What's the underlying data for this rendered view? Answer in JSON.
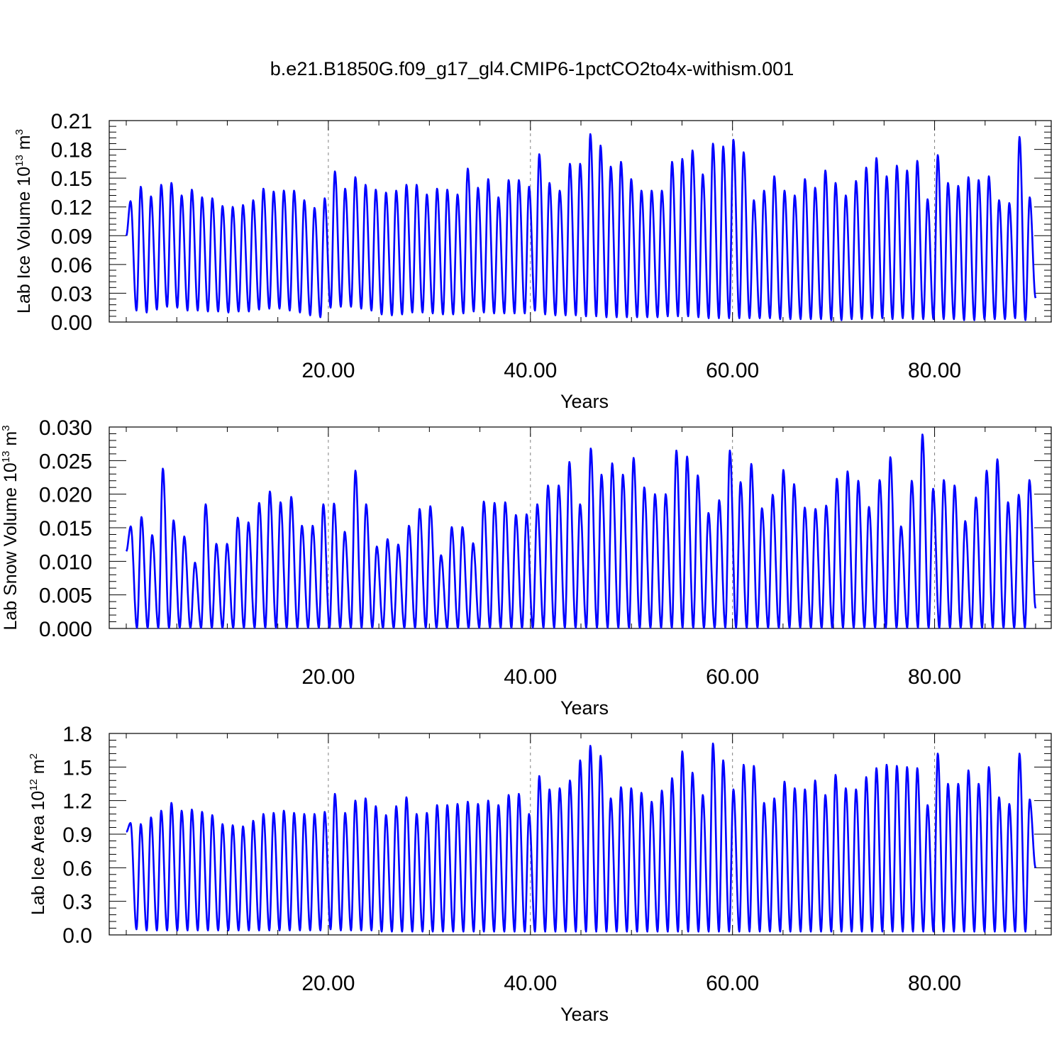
{
  "title": "b.e21.B1850G.f09_g17_gl4.CMIP6-1pctCO2to4x-withism.001",
  "colors": {
    "line": "#0000ff",
    "axis": "#000000",
    "grid": "#808080",
    "background": "#ffffff"
  },
  "chart_data": [
    {
      "type": "line",
      "title": "",
      "xlabel": "Years",
      "ylabel": {
        "prefix": "Lab Ice Volume 10",
        "exponent": "13",
        "unit": " m",
        "unit_exponent": "3"
      },
      "xlim": [
        0,
        90
      ],
      "ylim": [
        0,
        0.21
      ],
      "xticks": [
        20,
        40,
        60,
        80
      ],
      "xtick_labels": [
        "20.00",
        "40.00",
        "60.00",
        "80.00"
      ],
      "yticks": [
        0,
        0.03,
        0.06,
        0.09,
        0.12,
        0.15,
        0.18,
        0.21
      ],
      "ytick_labels": [
        "0.00",
        "0.03",
        "0.06",
        "0.09",
        "0.12",
        "0.15",
        "0.18",
        "0.21"
      ],
      "grid": "vertical dashed at x ticks",
      "series": [
        {
          "seasonal": true,
          "start_value": 0.09,
          "end_value": 0.025,
          "peaks": [
            0.126,
            0.141,
            0.131,
            0.143,
            0.145,
            0.132,
            0.138,
            0.13,
            0.129,
            0.121,
            0.12,
            0.122,
            0.127,
            0.139,
            0.136,
            0.137,
            0.137,
            0.127,
            0.119,
            0.129,
            0.157,
            0.139,
            0.151,
            0.143,
            0.138,
            0.135,
            0.137,
            0.143,
            0.143,
            0.133,
            0.139,
            0.138,
            0.133,
            0.16,
            0.14,
            0.149,
            0.13,
            0.148,
            0.148,
            0.141,
            0.175,
            0.145,
            0.137,
            0.165,
            0.165,
            0.196,
            0.184,
            0.162,
            0.167,
            0.149,
            0.137,
            0.137,
            0.137,
            0.167,
            0.17,
            0.179,
            0.154,
            0.186,
            0.183,
            0.19,
            0.177,
            0.127,
            0.137,
            0.152,
            0.137,
            0.132,
            0.149,
            0.14,
            0.158,
            0.145,
            0.132,
            0.147,
            0.161,
            0.171,
            0.152,
            0.163,
            0.158,
            0.168,
            0.128,
            0.174,
            0.145,
            0.142,
            0.151,
            0.148,
            0.152,
            0.127,
            0.124,
            0.193,
            0.13
          ],
          "troughs": [
            0.012,
            0.01,
            0.013,
            0.016,
            0.015,
            0.012,
            0.012,
            0.011,
            0.011,
            0.01,
            0.011,
            0.011,
            0.013,
            0.014,
            0.014,
            0.012,
            0.01,
            0.007,
            0.005,
            0.015,
            0.016,
            0.016,
            0.014,
            0.012,
            0.008,
            0.007,
            0.008,
            0.01,
            0.01,
            0.009,
            0.008,
            0.008,
            0.009,
            0.011,
            0.01,
            0.009,
            0.009,
            0.009,
            0.009,
            0.012,
            0.008,
            0.007,
            0.007,
            0.007,
            0.006,
            0.006,
            0.005,
            0.005,
            0.005,
            0.005,
            0.005,
            0.005,
            0.006,
            0.006,
            0.006,
            0.005,
            0.004,
            0.004,
            0.004,
            0.004,
            0.004,
            0.004,
            0.004,
            0.003,
            0.003,
            0.003,
            0.003,
            0.003,
            0.002,
            0.002,
            0.003,
            0.003,
            0.004,
            0.004,
            0.003,
            0.004,
            0.003,
            0.003,
            0.003,
            0.003,
            0.003,
            0.002,
            0.002,
            0.003,
            0.003,
            0.003,
            0.004,
            0.002
          ]
        }
      ]
    },
    {
      "type": "line",
      "title": "",
      "xlabel": "Years",
      "ylabel": {
        "prefix": "Lab Snow Volume 10",
        "exponent": "13",
        "unit": " m",
        "unit_exponent": "3"
      },
      "xlim": [
        0,
        90
      ],
      "ylim": [
        0,
        0.03
      ],
      "xticks": [
        20,
        40,
        60,
        80
      ],
      "xtick_labels": [
        "20.00",
        "40.00",
        "60.00",
        "80.00"
      ],
      "yticks": [
        0,
        0.005,
        0.01,
        0.015,
        0.02,
        0.025,
        0.03
      ],
      "ytick_labels": [
        "0.000",
        "0.005",
        "0.010",
        "0.015",
        "0.020",
        "0.025",
        "0.030"
      ],
      "grid": "vertical dashed at x ticks",
      "series": [
        {
          "seasonal": true,
          "start_value": 0.0115,
          "end_value": 0.003,
          "peaks": [
            0.0152,
            0.0166,
            0.0139,
            0.0238,
            0.0161,
            0.0137,
            0.0098,
            0.0185,
            0.0126,
            0.0126,
            0.0165,
            0.0158,
            0.0187,
            0.0204,
            0.0188,
            0.0196,
            0.0153,
            0.0153,
            0.0185,
            0.0186,
            0.0144,
            0.0235,
            0.0185,
            0.0122,
            0.0133,
            0.0125,
            0.0153,
            0.0178,
            0.0182,
            0.0109,
            0.0151,
            0.0151,
            0.0127,
            0.0189,
            0.0187,
            0.0188,
            0.0169,
            0.017,
            0.0185,
            0.0213,
            0.0213,
            0.0248,
            0.0185,
            0.0268,
            0.0229,
            0.0246,
            0.0229,
            0.0254,
            0.021,
            0.02,
            0.02,
            0.0265,
            0.0256,
            0.0228,
            0.0172,
            0.0191,
            0.0265,
            0.0218,
            0.0245,
            0.0179,
            0.0199,
            0.0236,
            0.0215,
            0.018,
            0.0178,
            0.0183,
            0.0223,
            0.0234,
            0.022,
            0.0181,
            0.0221,
            0.0255,
            0.0152,
            0.022,
            0.0289,
            0.0208,
            0.0221,
            0.0213,
            0.016,
            0.0195,
            0.0235,
            0.0252,
            0.0188,
            0.0199,
            0.0221
          ],
          "troughs": [
            0.0001,
            0.0001,
            0.0001,
            0.0001,
            0.0001,
            0.0001,
            0.0001,
            0.0001,
            0.0001,
            0.0001,
            0.0001,
            0.0001,
            0.0001,
            0.0001,
            0.0001,
            0.0001,
            0.0001,
            0.0001,
            0.0001,
            0.0001,
            0.0001,
            0.0001,
            0.0001,
            0.0001,
            0.0001,
            0.0001,
            0.0001,
            0.0001,
            0.0001,
            0.0001,
            0.0001,
            0.0001,
            0.0001,
            0.0001,
            0.0001,
            0.0001,
            0.0001,
            0.0001,
            0.0001,
            0.0001,
            0.0001,
            0.0001,
            0.0001,
            0.0001,
            0.0001,
            0.0001,
            0.0001,
            0.0001,
            0.0001,
            0.0001,
            0.0001,
            0.0001,
            0.0001,
            0.0001,
            0.0001,
            0.0001,
            0.0001,
            0.0001,
            0.0001,
            0.0001,
            0.0001,
            0.0001,
            0.0001,
            0.0001,
            0.0001,
            0.0001,
            0.0001,
            0.0001,
            0.0001,
            0.0001,
            0.0001,
            0.0001,
            0.0001,
            0.0001,
            0.0001,
            0.0001,
            0.0001,
            0.0001,
            0.0001,
            0.0001,
            0.0001,
            0.0001,
            0.0001,
            0.0001
          ]
        }
      ]
    },
    {
      "type": "line",
      "title": "",
      "xlabel": "Years",
      "ylabel": {
        "prefix": "Lab Ice Area 10",
        "exponent": "12",
        "unit": " m",
        "unit_exponent": "2"
      },
      "xlim": [
        0,
        90
      ],
      "ylim": [
        0,
        1.8
      ],
      "xticks": [
        20,
        40,
        60,
        80
      ],
      "xtick_labels": [
        "20.00",
        "40.00",
        "60.00",
        "80.00"
      ],
      "yticks": [
        0,
        0.3,
        0.6,
        0.9,
        1.2,
        1.5,
        1.8
      ],
      "ytick_labels": [
        "0.0",
        "0.3",
        "0.6",
        "0.9",
        "1.2",
        "1.5",
        "1.8"
      ],
      "grid": "vertical dashed at x ticks",
      "series": [
        {
          "seasonal": true,
          "start_value": 0.92,
          "end_value": 0.6,
          "peaks": [
            1.0,
            0.99,
            1.05,
            1.11,
            1.18,
            1.11,
            1.12,
            1.1,
            1.07,
            0.99,
            0.98,
            0.97,
            1.02,
            1.08,
            1.09,
            1.11,
            1.09,
            1.08,
            1.08,
            1.1,
            1.26,
            1.09,
            1.2,
            1.22,
            1.15,
            1.07,
            1.15,
            1.23,
            1.08,
            1.09,
            1.16,
            1.16,
            1.17,
            1.19,
            1.17,
            1.2,
            1.16,
            1.25,
            1.26,
            1.08,
            1.42,
            1.3,
            1.31,
            1.38,
            1.56,
            1.69,
            1.6,
            1.22,
            1.32,
            1.31,
            1.27,
            1.19,
            1.29,
            1.4,
            1.64,
            1.45,
            1.25,
            1.71,
            1.56,
            1.3,
            1.52,
            1.51,
            1.18,
            1.22,
            1.37,
            1.31,
            1.3,
            1.38,
            1.25,
            1.43,
            1.31,
            1.3,
            1.41,
            1.49,
            1.52,
            1.51,
            1.5,
            1.49,
            1.16,
            1.62,
            1.35,
            1.35,
            1.47,
            1.35,
            1.5,
            1.23,
            1.17,
            1.62,
            1.21
          ],
          "troughs": [
            0.05,
            0.04,
            0.04,
            0.04,
            0.04,
            0.04,
            0.04,
            0.04,
            0.04,
            0.04,
            0.04,
            0.04,
            0.04,
            0.04,
            0.04,
            0.04,
            0.04,
            0.04,
            0.04,
            0.05,
            0.04,
            0.04,
            0.04,
            0.04,
            0.03,
            0.03,
            0.03,
            0.03,
            0.03,
            0.03,
            0.03,
            0.03,
            0.03,
            0.03,
            0.03,
            0.03,
            0.03,
            0.03,
            0.03,
            0.03,
            0.03,
            0.03,
            0.03,
            0.03,
            0.03,
            0.03,
            0.03,
            0.03,
            0.03,
            0.03,
            0.03,
            0.03,
            0.03,
            0.03,
            0.03,
            0.03,
            0.03,
            0.03,
            0.03,
            0.03,
            0.03,
            0.03,
            0.03,
            0.03,
            0.03,
            0.03,
            0.03,
            0.03,
            0.03,
            0.03,
            0.03,
            0.03,
            0.03,
            0.03,
            0.03,
            0.03,
            0.03,
            0.03,
            0.03,
            0.03,
            0.03,
            0.03,
            0.03,
            0.03,
            0.03,
            0.03,
            0.03,
            0.03
          ]
        }
      ]
    }
  ]
}
